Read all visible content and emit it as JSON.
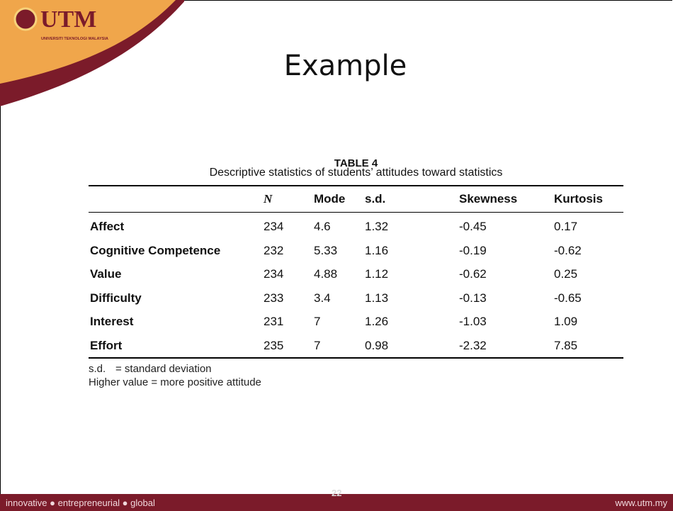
{
  "logo": {
    "name": "UTM",
    "subtitle": "UNIVERSITI TEKNOLOGI MALAYSIA"
  },
  "title": "Example",
  "table": {
    "caption": "TABLE 4",
    "subtitle": "Descriptive statistics of students’ attitudes toward statistics",
    "header": [
      "N",
      "Mode",
      "s.d.",
      "Skewness",
      "Kurtosis"
    ],
    "rows": [
      [
        "Affect",
        234,
        4.6,
        1.32,
        -0.45,
        0.17
      ],
      [
        "Cognitive Competence",
        232,
        5.33,
        1.16,
        -0.19,
        -0.62
      ],
      [
        "Value",
        234,
        4.88,
        1.12,
        -0.62,
        0.25
      ],
      [
        "Difficulty",
        233,
        3.4,
        1.13,
        -0.13,
        -0.65
      ],
      [
        "Interest",
        231,
        7,
        1.26,
        -1.03,
        1.09
      ],
      [
        "Effort",
        235,
        7,
        0.98,
        -2.32,
        7.85
      ]
    ],
    "notes": [
      [
        "s.d.",
        "= standard deviation"
      ],
      [
        "Higher value = more positive attitude"
      ]
    ]
  },
  "footer": {
    "tagline": "innovative ● entrepreneurial ● global",
    "page": 22,
    "url": "www.utm.my"
  }
}
